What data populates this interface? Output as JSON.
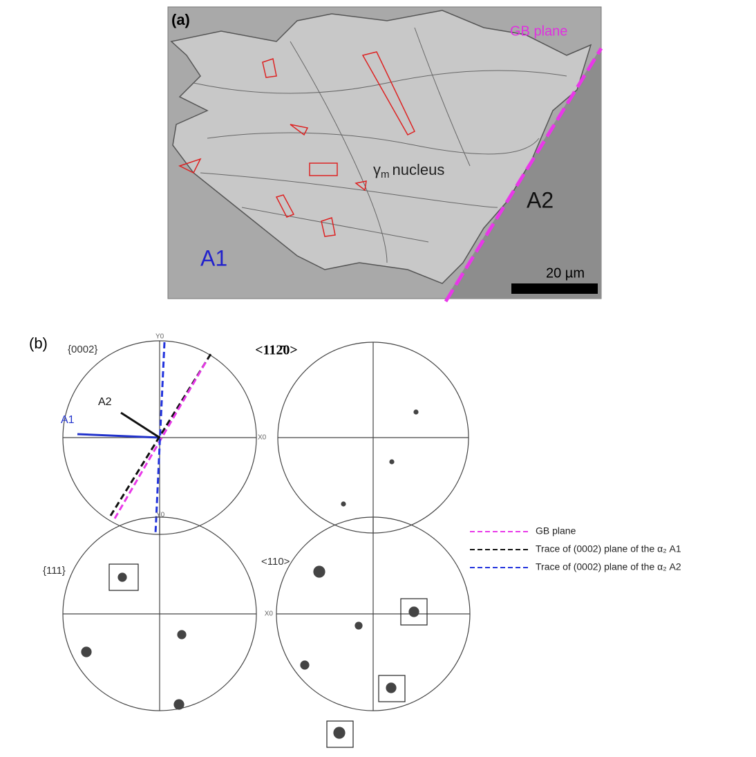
{
  "panel_a": {
    "label": "(a)",
    "gb_plane": "GB plane",
    "nucleus_symbol": "γ",
    "nucleus_subscript": "m",
    "nucleus_text": "nucleus",
    "grain_a1": "A1",
    "grain_a2": "A2",
    "scale_bar": "20 µm"
  },
  "panel_b": {
    "label": "(b)",
    "pole_figures": [
      {
        "title": "{0002}",
        "y_axis": "Y0",
        "x_axis": "X0",
        "label_a2": "A2",
        "label_a1": "A1"
      },
      {
        "title": "<112̄0>"
      },
      {
        "title": "{111}",
        "y_axis": "Y0",
        "x_axis": "X0"
      },
      {
        "title": "<110>",
        "x_axis": "X0"
      }
    ]
  },
  "legend": [
    "GB plane",
    "Trace of (0002) plane of the α₂ A1",
    "Trace of (0002) plane of the α₂ A2"
  ]
}
